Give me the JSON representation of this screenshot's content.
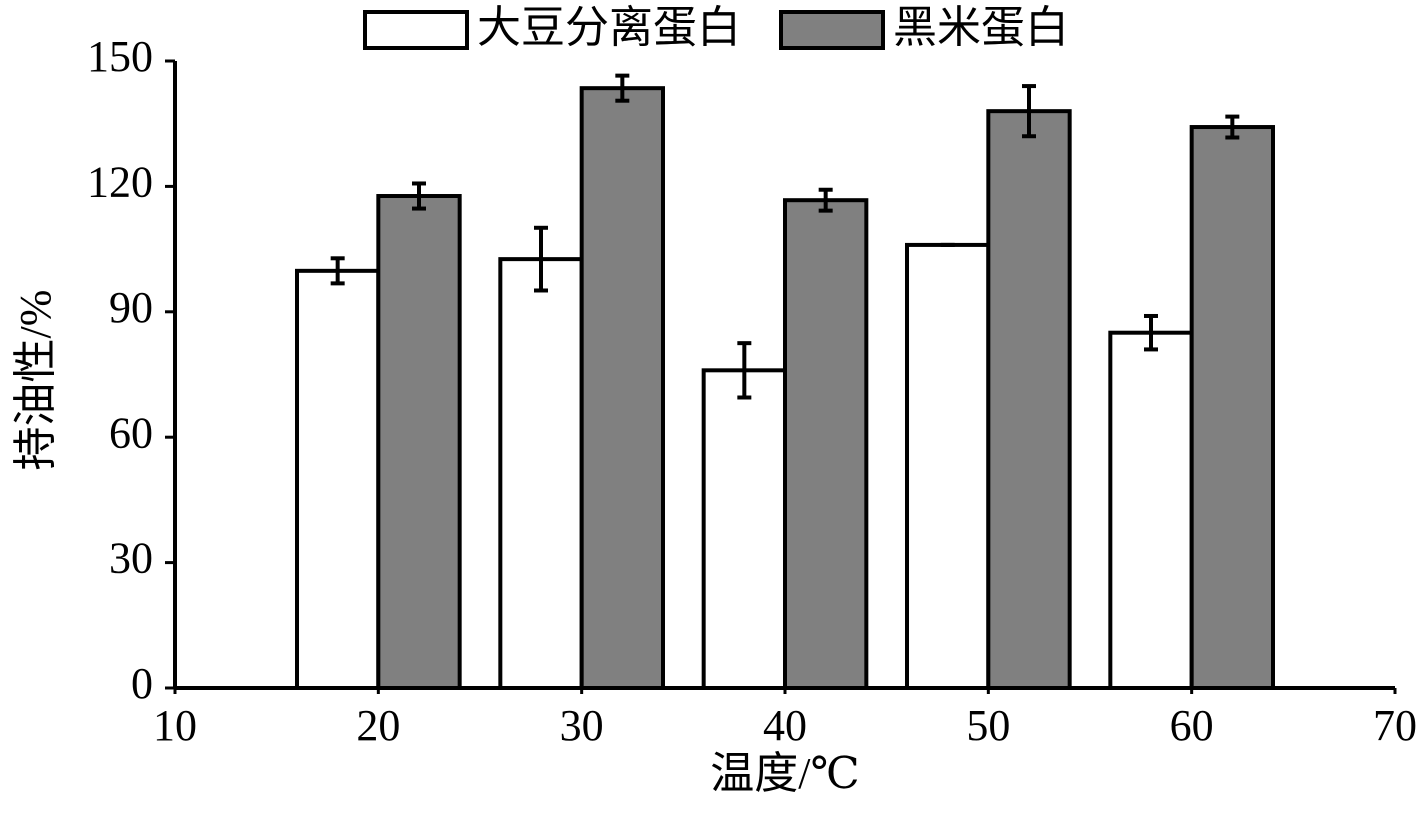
{
  "chart_data": {
    "type": "bar",
    "x": [
      20,
      30,
      40,
      50,
      60
    ],
    "series": [
      {
        "name": "大豆分离蛋白",
        "color": "#ffffff",
        "values": [
          99.8,
          102.6,
          76,
          106,
          85
        ],
        "errors": [
          3,
          7.5,
          6.5,
          0,
          4
        ]
      },
      {
        "name": "黑米蛋白",
        "color": "#808080",
        "values": [
          117.7,
          143.5,
          116.7,
          138,
          134.2
        ],
        "errors": [
          3,
          3,
          2.5,
          6,
          2.5
        ]
      }
    ],
    "xlabel": "温度/℃",
    "ylabel": "持油性/%",
    "xlim": [
      10,
      70
    ],
    "xticks": [
      10,
      20,
      30,
      40,
      50,
      60,
      70
    ],
    "ylim": [
      0,
      150
    ],
    "yticks": [
      0,
      30,
      60,
      90,
      120,
      150
    ],
    "legend": "top"
  }
}
